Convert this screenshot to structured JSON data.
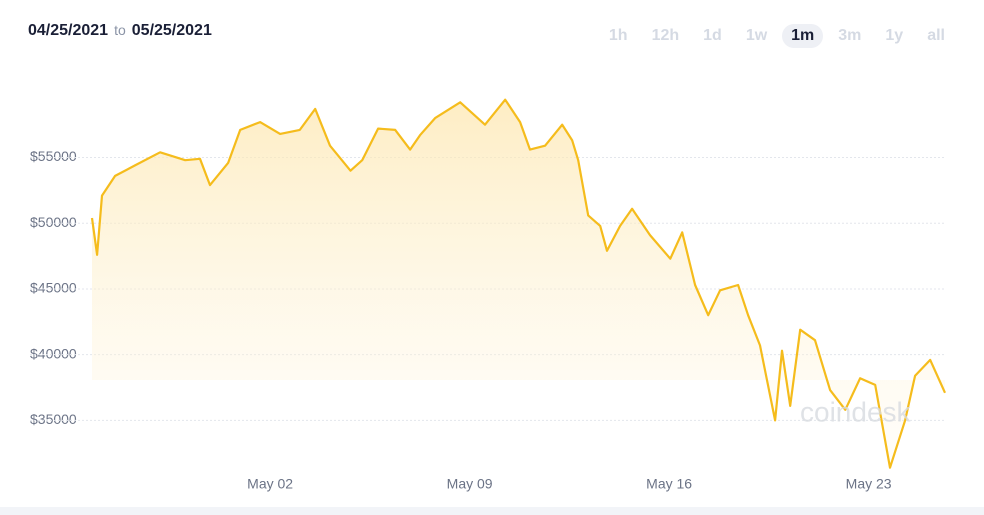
{
  "header": {
    "start_date": "04/25/2021",
    "to": "to",
    "end_date": "05/25/2021",
    "tabs": [
      "1h",
      "12h",
      "1d",
      "1w",
      "1m",
      "3m",
      "1y",
      "all"
    ],
    "selected_tab": "1m"
  },
  "chart_data": {
    "type": "line",
    "watermark": "coindesk",
    "color": "#f5bc1c",
    "grid": true,
    "x": [
      0.75,
      0.93,
      1.1,
      1.56,
      2.26,
      3.14,
      4.02,
      4.54,
      4.89,
      5.53,
      5.95,
      6.65,
      7.35,
      8.04,
      8.58,
      9.1,
      9.82,
      10.23,
      10.79,
      11.39,
      11.91,
      12.26,
      12.79,
      13.67,
      14.54,
      15.25,
      15.77,
      16.12,
      16.65,
      17.25,
      17.6,
      17.81,
      18.16,
      18.58,
      18.82,
      19.28,
      19.7,
      20.33,
      21.04,
      21.46,
      21.91,
      22.37,
      22.79,
      23.42,
      23.77,
      24.19,
      24.72,
      24.96,
      25.25,
      25.6,
      26.12,
      26.65,
      27.18,
      27.7,
      28.23,
      28.75,
      29.28,
      29.63,
      30.16,
      30.68
    ],
    "values": [
      50400,
      47600,
      52100,
      53600,
      54400,
      55400,
      54800,
      54900,
      52900,
      54600,
      57100,
      57700,
      56800,
      57100,
      58700,
      55900,
      54000,
      54800,
      57200,
      57100,
      55600,
      56700,
      58000,
      59200,
      57500,
      59400,
      57700,
      55600,
      55900,
      57500,
      56300,
      54800,
      50600,
      49800,
      47900,
      49800,
      51100,
      49100,
      47300,
      49300,
      45300,
      43000,
      44900,
      45300,
      43000,
      40700,
      35000,
      40300,
      36100,
      41900,
      41100,
      37300,
      35800,
      38200,
      37700,
      31400,
      35000,
      38400,
      39600,
      37100
    ],
    "xlim": [
      0.75,
      30.68
    ],
    "xticks": [
      {
        "value": 7,
        "label": "May 02"
      },
      {
        "value": 14,
        "label": "May 09"
      },
      {
        "value": 21,
        "label": "May 16"
      },
      {
        "value": 28,
        "label": "May 23"
      }
    ],
    "ylim": [
      29700,
      60900
    ],
    "yticks": [
      {
        "value": 35000,
        "label": "$35000"
      },
      {
        "value": 40000,
        "label": "$40000"
      },
      {
        "value": 45000,
        "label": "$45000"
      },
      {
        "value": 50000,
        "label": "$50000"
      },
      {
        "value": 55000,
        "label": "$55000"
      }
    ]
  }
}
